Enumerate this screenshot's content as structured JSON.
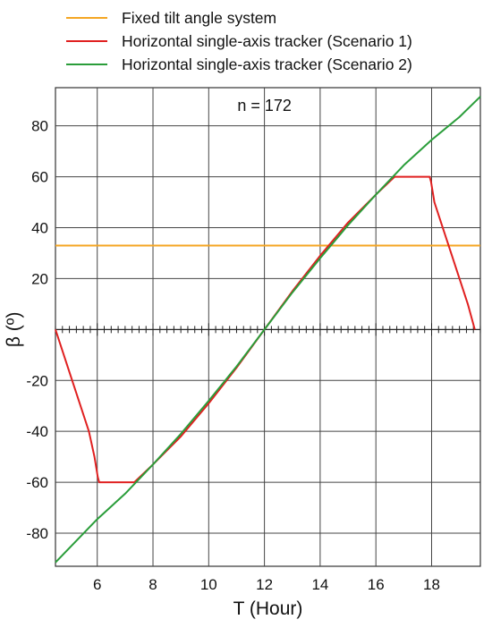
{
  "chart_data": {
    "type": "line",
    "annotation": "n = 172",
    "xlabel": "T (Hour)",
    "ylabel": "β (º)",
    "xlim": [
      4.5,
      19.75
    ],
    "ylim": [
      -93,
      95
    ],
    "xticks": [
      6,
      8,
      10,
      12,
      14,
      16,
      18
    ],
    "yticks": [
      -80,
      -60,
      -40,
      -20,
      20,
      40,
      60,
      80
    ],
    "grid": true,
    "legend_position": "top, outside plot",
    "series": [
      {
        "name": "Fixed tilt angle system",
        "color": "#f5a623",
        "x": [
          4.5,
          19.75
        ],
        "y": [
          33,
          33
        ]
      },
      {
        "name": "Horizontal single-axis tracker (Scenario 1)",
        "color": "#e02020",
        "x": [
          4.5,
          4.8,
          5.1,
          5.4,
          5.7,
          5.9,
          6.02,
          6.07,
          6.5,
          7.0,
          7.33,
          8.0,
          9.0,
          10.0,
          11.0,
          12.0,
          13.0,
          14.0,
          15.0,
          16.0,
          16.67,
          17.0,
          17.5,
          17.93,
          17.98,
          18.1,
          18.4,
          18.7,
          19.0,
          19.3,
          19.55
        ],
        "y": [
          0,
          -10,
          -20,
          -30,
          -40,
          -50,
          -58,
          -60,
          -60,
          -60,
          -60,
          -53,
          -42,
          -29,
          -15,
          0,
          15,
          29,
          42,
          53,
          60,
          60,
          60,
          60,
          58,
          50,
          40,
          30,
          20,
          10,
          0
        ]
      },
      {
        "name": "Horizontal single-axis tracker (Scenario 2)",
        "color": "#2a9d3a",
        "x": [
          4.5,
          6.0,
          7.0,
          8.0,
          9.0,
          10.0,
          11.0,
          12.0,
          13.0,
          14.0,
          15.0,
          16.0,
          17.0,
          18.0,
          19.0,
          19.75
        ],
        "y": [
          -91.5,
          -74.5,
          -64.5,
          -53,
          -41,
          -28,
          -14.5,
          0,
          14.5,
          28,
          41,
          53,
          64.5,
          74.5,
          83.5,
          91.5
        ]
      }
    ]
  }
}
